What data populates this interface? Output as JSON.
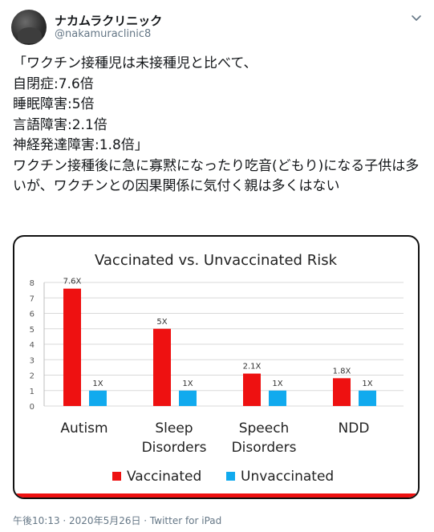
{
  "tweet": {
    "display_name": "ナカムラクリニック",
    "handle": "@nakamuraclinic8",
    "text": "「ワクチン接種児は未接種児と比べて、\n自閉症:7.6倍\n睡眠障害:5倍\n言語障害:2.1倍\n神経発達障害:1.8倍」\nワクチン接種後に急に寡黙になったり吃音(どもり)になる子供は多いが、ワクチンとの因果関係に気付く親は多くはない",
    "footer": "午後10:13 · 2020年5月26日 · Twitter for iPad"
  },
  "icons": {
    "avatar": "avatar-image",
    "menu": "chevron-down-icon"
  },
  "colors": {
    "vaccinated": "#ee1111",
    "unvaccinated": "#11aaee",
    "handle": "#657786"
  },
  "chart_data": {
    "type": "bar",
    "title": "Vaccinated vs. Unvaccinated Risk",
    "categories": [
      [
        "Autism"
      ],
      [
        "Sleep",
        "Disorders"
      ],
      [
        "Speech",
        "Disorders"
      ],
      [
        "NDD"
      ]
    ],
    "series": [
      {
        "name": "Vaccinated",
        "values": [
          7.6,
          5,
          2.1,
          1.8
        ],
        "labels": [
          "7.6X",
          "5X",
          "2.1X",
          "1.8X"
        ],
        "color": "#ee1111"
      },
      {
        "name": "Unvaccinated",
        "values": [
          1,
          1,
          1,
          1
        ],
        "labels": [
          "1X",
          "1X",
          "1X",
          "1X"
        ],
        "color": "#11aaee"
      }
    ],
    "yticks": [
      0,
      1,
      2,
      3,
      4,
      5,
      6,
      7,
      8
    ],
    "ylim": [
      0,
      8
    ],
    "grid": true,
    "legend": "bottom"
  }
}
